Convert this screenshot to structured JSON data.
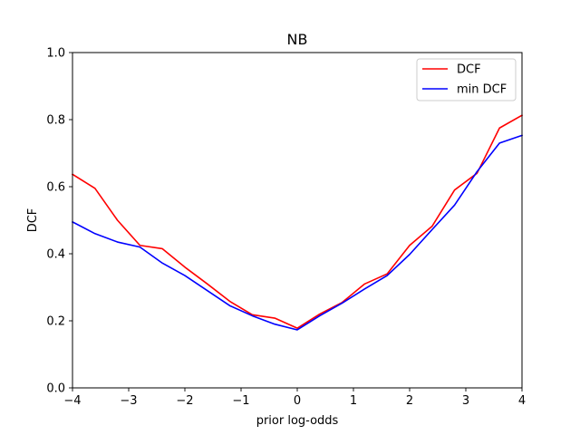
{
  "chart_data": {
    "type": "line",
    "title": "NB",
    "xlabel": "prior log-odds",
    "ylabel": "DCF",
    "xlim": [
      -4,
      4
    ],
    "ylim": [
      0,
      1
    ],
    "xticks": [
      -4,
      -3,
      -2,
      -1,
      0,
      1,
      2,
      3,
      4
    ],
    "xtick_labels": [
      "−4",
      "−3",
      "−2",
      "−1",
      "0",
      "1",
      "2",
      "3",
      "4"
    ],
    "yticks": [
      0,
      0.2,
      0.4,
      0.6,
      0.8,
      1.0
    ],
    "ytick_labels": [
      "0.0",
      "0.2",
      "0.4",
      "0.6",
      "0.8",
      "1.0"
    ],
    "grid": false,
    "legend": "top-right",
    "series": [
      {
        "name": "DCF",
        "color": "#ff0000",
        "x": [
          -4,
          -3.6,
          -3.2,
          -2.8,
          -2.4,
          -2.0,
          -1.6,
          -1.2,
          -0.8,
          -0.4,
          0,
          0.4,
          0.8,
          1.2,
          1.6,
          2.0,
          2.4,
          2.8,
          3.2,
          3.6,
          4.0
        ],
        "y": [
          0.637,
          0.595,
          0.5,
          0.425,
          0.415,
          0.36,
          0.31,
          0.258,
          0.218,
          0.208,
          0.178,
          0.22,
          0.255,
          0.31,
          0.34,
          0.425,
          0.482,
          0.59,
          0.64,
          0.775,
          0.813
        ]
      },
      {
        "name": "min DCF",
        "color": "#0000ff",
        "x": [
          -4,
          -3.6,
          -3.2,
          -2.8,
          -2.4,
          -2.0,
          -1.6,
          -1.2,
          -0.8,
          -0.4,
          0,
          0.4,
          0.8,
          1.2,
          1.6,
          2.0,
          2.4,
          2.8,
          3.2,
          3.6,
          4.0
        ],
        "y": [
          0.495,
          0.46,
          0.435,
          0.42,
          0.372,
          0.335,
          0.29,
          0.245,
          0.215,
          0.19,
          0.173,
          0.215,
          0.253,
          0.295,
          0.335,
          0.398,
          0.472,
          0.545,
          0.645,
          0.73,
          0.753
        ]
      }
    ]
  }
}
